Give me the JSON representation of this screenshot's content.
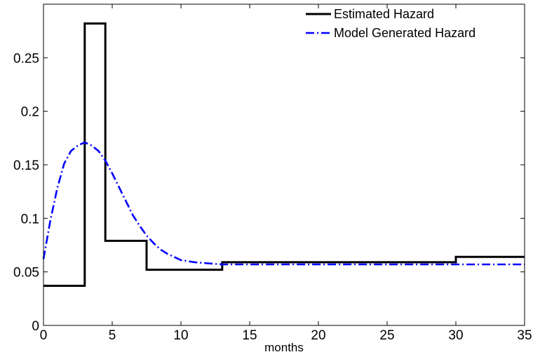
{
  "chart_data": {
    "type": "line",
    "title": "",
    "xlabel": "months",
    "ylabel": "",
    "xlim": [
      0,
      35
    ],
    "ylim": [
      0,
      0.3
    ],
    "grid": false,
    "legend_position": "top-right",
    "x_ticks": [
      0,
      5,
      10,
      15,
      20,
      25,
      30,
      35
    ],
    "x_tick_labels": [
      "0",
      "5",
      "10",
      "15",
      "20",
      "25",
      "30",
      "35"
    ],
    "y_ticks": [
      0,
      0.05,
      0.1,
      0.15,
      0.2,
      0.25
    ],
    "y_tick_labels": [
      "0",
      "0.05",
      "0.1",
      "0.15",
      "0.2",
      "0.25"
    ],
    "series": [
      {
        "name": "Estimated Hazard",
        "style": "solid",
        "color": "#000000",
        "step": true,
        "x": [
          0,
          3,
          3,
          4.5,
          4.5,
          7.5,
          7.5,
          13,
          13,
          30,
          30,
          35
        ],
        "y": [
          0.037,
          0.037,
          0.282,
          0.282,
          0.079,
          0.079,
          0.052,
          0.052,
          0.059,
          0.059,
          0.064,
          0.064
        ]
      },
      {
        "name": "Model Generated Hazard",
        "style": "dash-dot",
        "color": "#0000ff",
        "step": false,
        "x": [
          0,
          0.5,
          1,
          1.5,
          2,
          2.5,
          3,
          3.5,
          4,
          4.5,
          5,
          5.5,
          6,
          6.5,
          7,
          7.5,
          8,
          8.5,
          9,
          9.5,
          10,
          11,
          12,
          13,
          14,
          15,
          20,
          25,
          30,
          35
        ],
        "y": [
          0.062,
          0.098,
          0.128,
          0.151,
          0.163,
          0.168,
          0.171,
          0.168,
          0.163,
          0.154,
          0.142,
          0.129,
          0.116,
          0.103,
          0.093,
          0.084,
          0.077,
          0.071,
          0.067,
          0.064,
          0.061,
          0.059,
          0.058,
          0.057,
          0.057,
          0.057,
          0.057,
          0.057,
          0.057,
          0.057
        ]
      }
    ]
  }
}
